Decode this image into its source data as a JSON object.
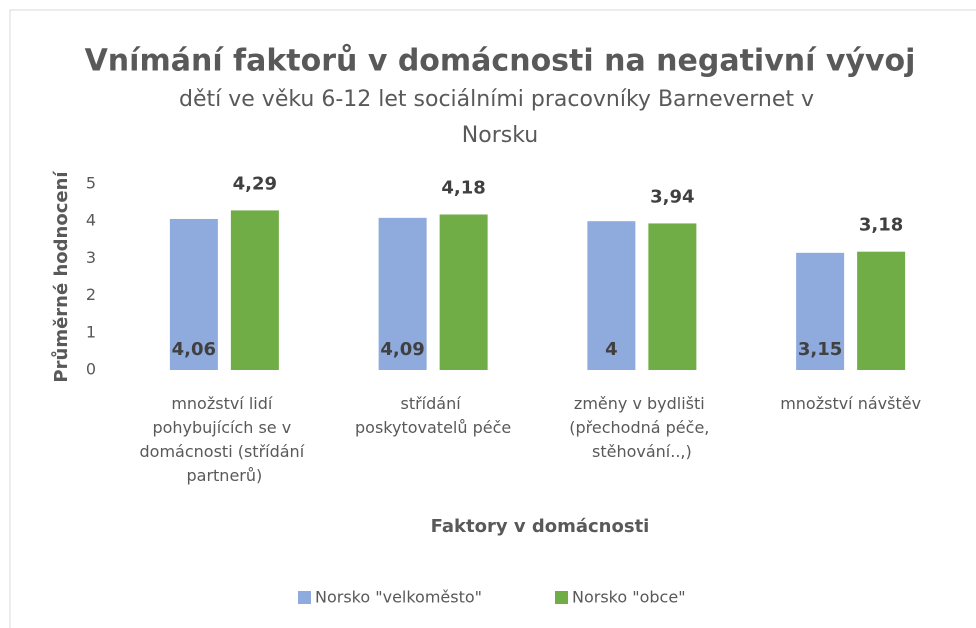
{
  "chart_data": {
    "type": "bar",
    "title": "Vnímání faktorů v domácnosti na negativní vývoj",
    "subtitle": "dětí ve věku 6-12 let sociálními pracovníky Barnevernet v Norsku",
    "x_label": "Faktory v domácnosti",
    "y_label": "Průměrné hodnocení",
    "categories": [
      "množství lidí pohybujících se v domácnosti (střídání partnerů)",
      "střídání poskytovatelů péče",
      "změny v bydlišti (přechodná péče, stěhování..,)",
      "množství návštěv"
    ],
    "series": [
      {
        "name": "Norsko \"velkoměsto\"",
        "color": "#8faadc",
        "values": [
          4.06,
          4.09,
          4,
          3.15
        ],
        "value_labels": [
          "4,06",
          "4,09",
          "4",
          "3,15"
        ]
      },
      {
        "name": "Norsko \"obce\"",
        "color": "#70ad47",
        "values": [
          4.29,
          4.18,
          3.94,
          3.18
        ],
        "value_labels": [
          "4,29",
          "4,18",
          "3,94",
          "3,18"
        ]
      }
    ],
    "ylim": [
      0,
      5
    ],
    "yticks": [
      0,
      1,
      2,
      3,
      4,
      5
    ],
    "grid": false,
    "legend": "bottom"
  }
}
